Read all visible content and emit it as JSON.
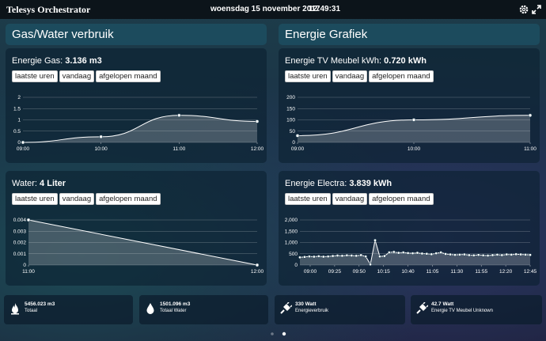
{
  "header": {
    "title": "Telesys Orchestrator",
    "date": "woensdag 15 november 2017",
    "time": "12:49:31",
    "icons": [
      "gear-icon",
      "fullscreen-icon"
    ]
  },
  "sections": {
    "left": "Gas/Water verbruik",
    "right": "Energie Grafiek"
  },
  "range_buttons": [
    "laatste uren",
    "vandaag",
    "afgelopen maand"
  ],
  "panels": {
    "gas": {
      "label": "Energie Gas: ",
      "value": "3.136 m3"
    },
    "tv": {
      "label": "Energie TV Meubel kWh: ",
      "value": "0.720 kWh"
    },
    "water": {
      "label": "Water: ",
      "value": "4 Liter"
    },
    "electra": {
      "label": "Energie Electra: ",
      "value": "3.839 kWh"
    }
  },
  "chart_data": [
    {
      "id": "gas",
      "type": "area",
      "title": "Energie Gas: 3.136 m3",
      "x_ticks": [
        "09:00",
        "10:00",
        "11:00",
        "12:00"
      ],
      "x": [
        0,
        1,
        2,
        3
      ],
      "values": [
        0,
        0.25,
        1.2,
        0.93
      ],
      "y_ticks": [
        "0",
        "0.5",
        "1",
        "1.5",
        "2"
      ],
      "ylim": [
        0,
        2
      ],
      "grid": true
    },
    {
      "id": "tv",
      "type": "area",
      "title": "Energie TV Meubel kWh: 0.720 kWh",
      "x_ticks": [
        "09:00",
        "10:00",
        "11:00"
      ],
      "x": [
        0,
        1,
        2
      ],
      "values": [
        30,
        100,
        120
      ],
      "y_ticks": [
        "0",
        "50",
        "100",
        "150",
        "200"
      ],
      "ylim": [
        0,
        200
      ],
      "grid": true
    },
    {
      "id": "water",
      "type": "area",
      "title": "Water: 4 Liter",
      "x_ticks": [
        "11:00",
        "12:00"
      ],
      "x": [
        0,
        1
      ],
      "values": [
        0.004,
        0
      ],
      "y_ticks": [
        "0",
        "0.001",
        "0.002",
        "0.003",
        "0.004"
      ],
      "ylim": [
        0,
        0.004
      ],
      "grid": true
    },
    {
      "id": "electra",
      "type": "area",
      "title": "Energie Electra: 3.839 kWh",
      "x_ticks": [
        "09:00",
        "09:25",
        "09:50",
        "10:15",
        "10:40",
        "11:05",
        "11:30",
        "11:55",
        "12:20",
        "12:45"
      ],
      "values": [
        340,
        360,
        380,
        370,
        390,
        370,
        380,
        400,
        420,
        410,
        430,
        420,
        410,
        440,
        380,
        30,
        1100,
        380,
        400,
        560,
        580,
        540,
        560,
        530,
        520,
        540,
        510,
        500,
        480,
        520,
        560,
        490,
        470,
        450,
        460,
        470,
        440,
        430,
        450,
        430,
        420,
        440,
        460,
        440,
        470,
        460,
        480,
        470,
        460,
        450
      ],
      "y_ticks": [
        "0",
        "500",
        "1,000",
        "1,500",
        "2,000"
      ],
      "ylim": [
        0,
        2000
      ],
      "grid": true
    }
  ],
  "tiles": [
    {
      "value": "5456.023 m3",
      "label": "Totaal",
      "icon": "flame-icon"
    },
    {
      "value": "1501.096 m3",
      "label": "Totaal Water",
      "icon": "water-drop-icon"
    },
    {
      "value": "330 Watt",
      "label": "Energieverbruik",
      "icon": "plug-icon"
    },
    {
      "value": "42.7 Watt",
      "label": "Energie TV Meubel Unknown",
      "icon": "plug-icon"
    }
  ]
}
